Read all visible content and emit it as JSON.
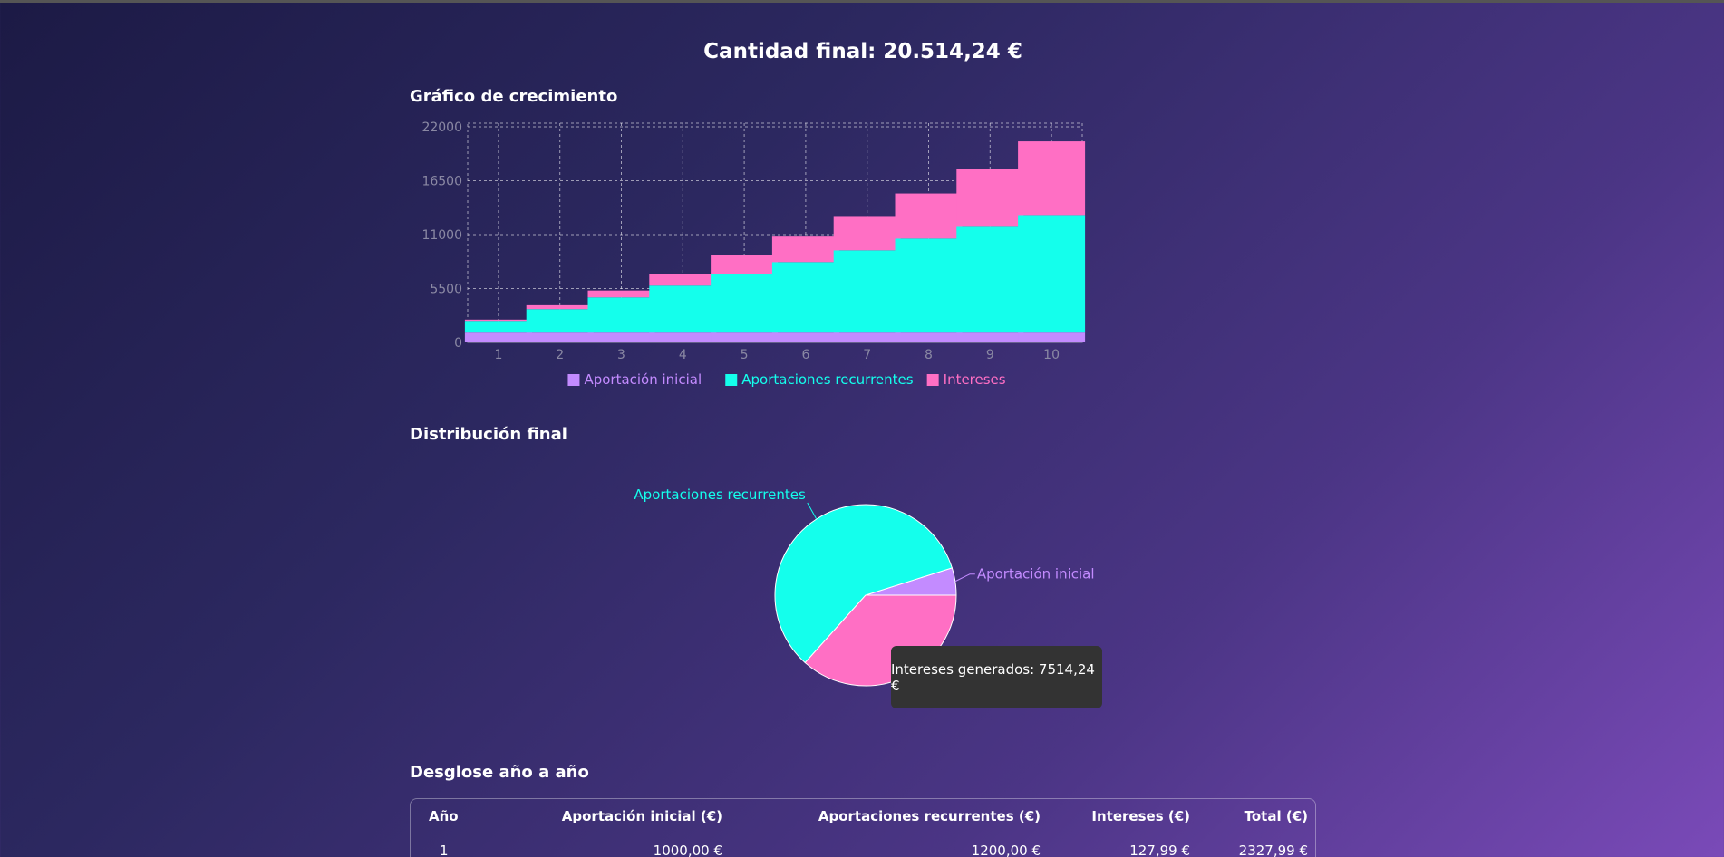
{
  "summary": {
    "final_amount": "Cantidad final: 20.514,24 €"
  },
  "sections": {
    "growth_title": "Gráfico de crecimiento",
    "distribution_title": "Distribución final",
    "breakdown_title": "Desglose año a año"
  },
  "colors": {
    "initial": "#c38bff",
    "recurring": "#14ffec",
    "interest": "#ff6fc4"
  },
  "chart_data": [
    {
      "type": "bar",
      "stacked": true,
      "categories": [
        "1",
        "2",
        "3",
        "4",
        "5",
        "6",
        "7",
        "8",
        "9",
        "10"
      ],
      "series": [
        {
          "name": "Aportación inicial",
          "values": [
            1000,
            1000,
            1000,
            1000,
            1000,
            1000,
            1000,
            1000,
            1000,
            1000
          ]
        },
        {
          "name": "Aportaciones recurrentes",
          "values": [
            1200,
            2400,
            3600,
            4800,
            6000,
            7200,
            8400,
            9600,
            10800,
            12000
          ]
        },
        {
          "name": "Intereses",
          "values": [
            128,
            400,
            700,
            1200,
            1900,
            2600,
            3500,
            4600,
            5900,
            7514.24
          ]
        }
      ],
      "yticks": [
        "0",
        "5500",
        "11000",
        "16500",
        "22000"
      ],
      "ylim": [
        0,
        22000
      ],
      "grid": true,
      "legend": "bottom"
    },
    {
      "type": "pie",
      "slices": [
        {
          "name": "Aportación inicial",
          "value": 1000
        },
        {
          "name": "Aportaciones recurrentes",
          "value": 12000
        },
        {
          "name": "Intereses",
          "value": 7514.24
        }
      ],
      "labels": [
        "Aportación inicial",
        "Aportaciones recurrentes"
      ],
      "tooltip": "Intereses generados: 7514,24 €"
    }
  ],
  "table": {
    "headers": [
      "Año",
      "Aportación inicial (€)",
      "Aportaciones recurrentes (€)",
      "Intereses (€)",
      "Total (€)"
    ],
    "rows": [
      [
        "1",
        "1000,00 €",
        "1200,00 €",
        "127,99 €",
        "2327,99 €"
      ]
    ]
  }
}
